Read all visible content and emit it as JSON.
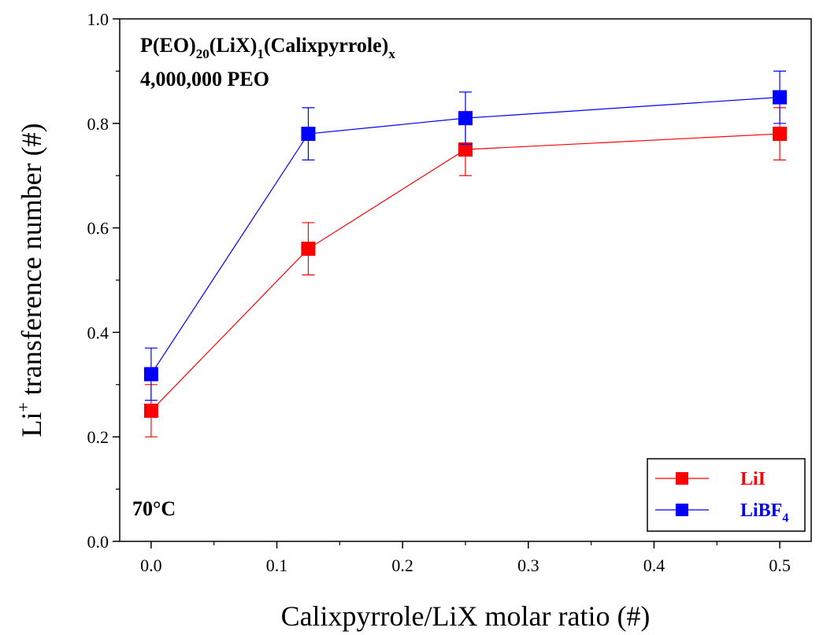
{
  "chart_data": {
    "type": "line",
    "xlabel": "Calixpyrrole/LiX molar ratio (#)",
    "ylabel_main": "Li",
    "ylabel_sup": "+",
    "ylabel_rest": " transference number (#)",
    "xlim": [
      -0.025,
      0.525
    ],
    "ylim": [
      0.0,
      1.0
    ],
    "xticks": [
      0.0,
      0.1,
      0.2,
      0.3,
      0.4,
      0.5
    ],
    "xtick_labels": [
      "0.0",
      "0.1",
      "0.2",
      "0.3",
      "0.4",
      "0.5"
    ],
    "yticks": [
      0.0,
      0.2,
      0.4,
      0.6,
      0.8,
      1.0
    ],
    "ytick_labels": [
      "0.0",
      "0.2",
      "0.4",
      "0.6",
      "0.8",
      "1.0"
    ],
    "grid": false,
    "legend_position": "bottom-right",
    "annotations": {
      "formula": {
        "p1": "P(EO)",
        "s1": "20",
        "p2": "(LiX)",
        "s2": "1",
        "p3": "(Calixpyrrole)",
        "s3": "x"
      },
      "peo": "4,000,000 PEO",
      "temperature": "70°C"
    },
    "series": [
      {
        "name_main": "LiI",
        "name_sub": "",
        "color": "#ff0000",
        "x": [
          0.0,
          0.125,
          0.25,
          0.5
        ],
        "y": [
          0.25,
          0.56,
          0.75,
          0.78
        ],
        "err": [
          0.05,
          0.05,
          0.05,
          0.05
        ]
      },
      {
        "name_main": "LiBF",
        "name_sub": "4",
        "color": "#0000ff",
        "x": [
          0.0,
          0.125,
          0.25,
          0.5
        ],
        "y": [
          0.32,
          0.78,
          0.81,
          0.85
        ],
        "err": [
          0.05,
          0.05,
          0.05,
          0.05
        ]
      }
    ]
  }
}
